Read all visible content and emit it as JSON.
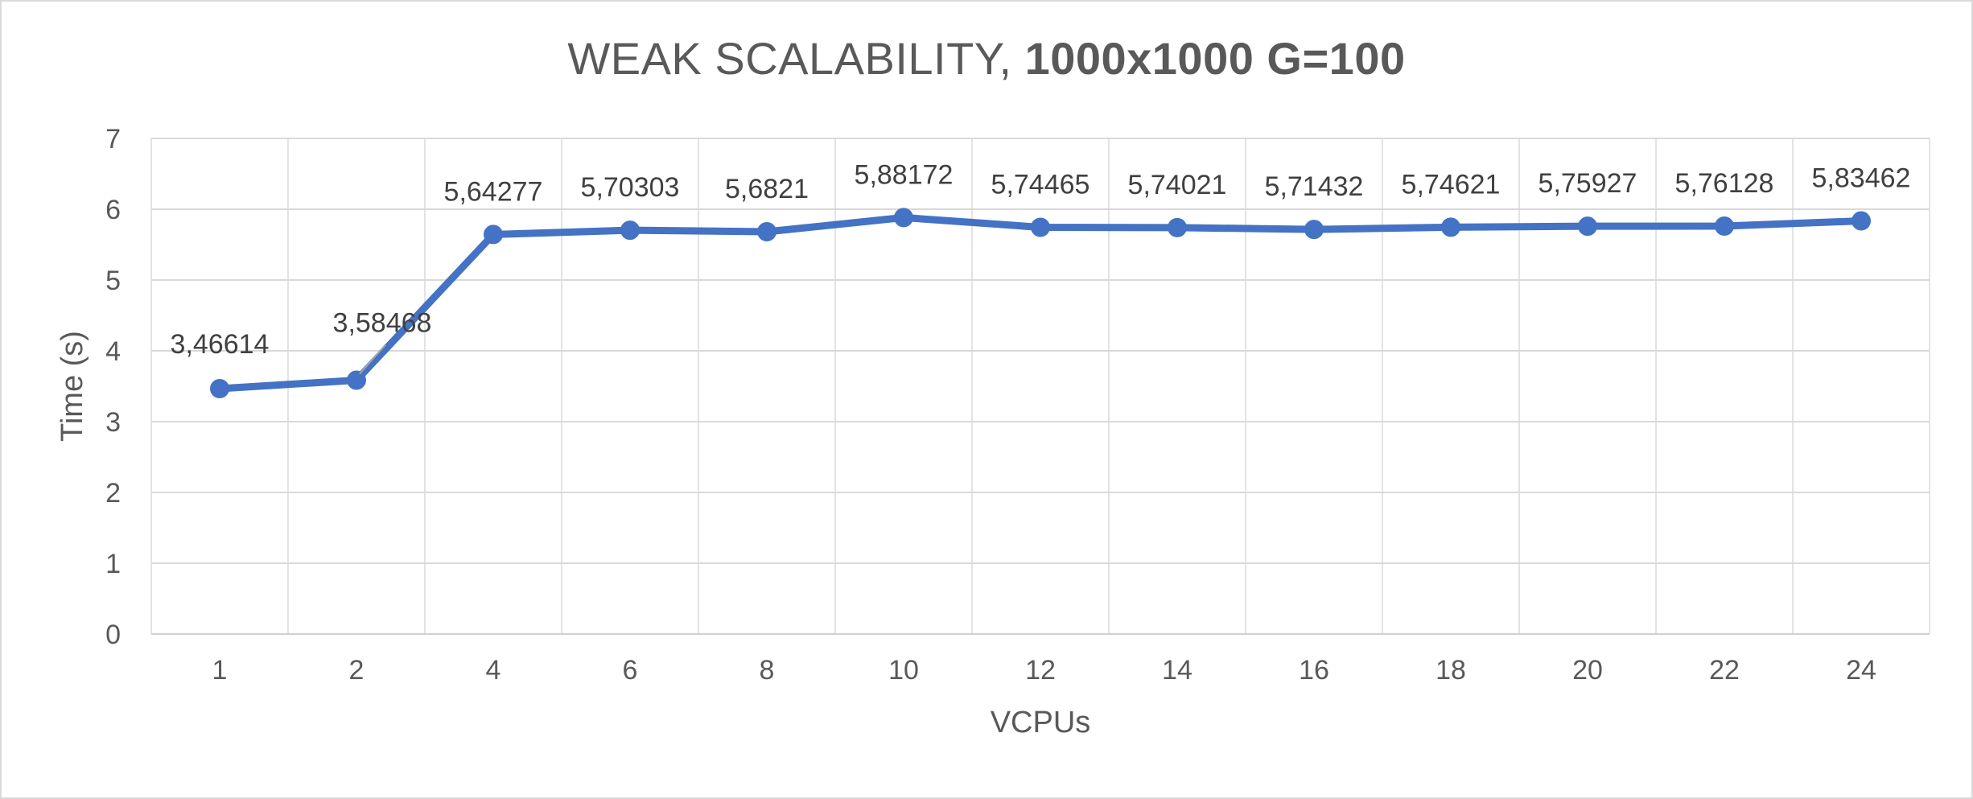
{
  "chart_data": {
    "type": "line",
    "title": "WEAK SCALABILITY, ",
    "title_bold": "1000x1000 G=100",
    "xlabel": "VCPUs",
    "ylabel": "Time (s)",
    "categories": [
      "1",
      "2",
      "4",
      "6",
      "8",
      "10",
      "12",
      "14",
      "16",
      "18",
      "20",
      "22",
      "24"
    ],
    "series": [
      {
        "values": [
          3.46614,
          3.58468,
          5.64277,
          5.70303,
          5.6821,
          5.88172,
          5.74465,
          5.74021,
          5.71432,
          5.74621,
          5.75927,
          5.76128,
          5.83462
        ],
        "labels": [
          "3,46614",
          "3,58468",
          "5,64277",
          "5,70303",
          "5,6821",
          "5,88172",
          "5,74465",
          "5,74021",
          "5,71432",
          "5,74621",
          "5,75927",
          "5,76128",
          "5,83462"
        ],
        "color": "#4472C4"
      }
    ],
    "yticks": [
      "0",
      "1",
      "2",
      "3",
      "4",
      "5",
      "6",
      "7"
    ],
    "ylim": [
      0,
      7
    ],
    "grid": true,
    "legend": "none"
  }
}
